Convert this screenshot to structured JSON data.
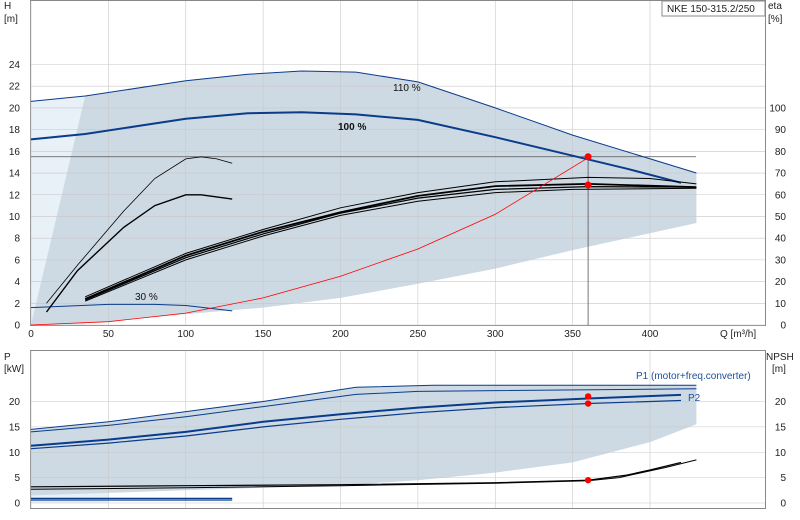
{
  "model_label": "NKE 150-315.2/250",
  "colors": {
    "band_fill": "#cdd9e3",
    "band_light": "#e8f0f8",
    "curve_blue": "#0a3c8c",
    "curve_black": "#000000",
    "system_red": "#ff0000",
    "grid": "#c8c8c8"
  },
  "chart_data": [
    {
      "type": "line",
      "name": "head_efficiency",
      "x_label": "Q [m³/h]",
      "y_left_label": [
        "H",
        "[m]"
      ],
      "y_right_label": [
        "eta",
        "[%]"
      ],
      "xlim": [
        0,
        430
      ],
      "ylim": [
        0,
        25
      ],
      "y2lim": [
        0,
        110
      ],
      "x_ticks": [
        0,
        50,
        100,
        150,
        200,
        250,
        300,
        350,
        400
      ],
      "y_ticks": [
        0,
        2,
        4,
        6,
        8,
        10,
        12,
        14,
        16,
        18,
        20,
        22,
        24
      ],
      "y2_ticks": [
        0,
        10,
        20,
        30,
        40,
        50,
        60,
        70,
        80,
        90,
        100
      ],
      "annotations": [
        "110 %",
        "100 %",
        "30 %"
      ],
      "band_upper": [
        [
          0,
          20.6
        ],
        [
          35,
          21.1
        ],
        [
          100,
          22.5
        ],
        [
          140,
          23.1
        ],
        [
          175,
          23.4
        ],
        [
          210,
          23.3
        ],
        [
          250,
          22.4
        ],
        [
          300,
          20
        ],
        [
          350,
          17.5
        ],
        [
          430,
          14
        ]
      ],
      "band_lower": [
        [
          430,
          9.4
        ],
        [
          350,
          6.9
        ],
        [
          300,
          5.2
        ],
        [
          250,
          3.8
        ],
        [
          200,
          2.5
        ],
        [
          150,
          1.6
        ],
        [
          100,
          1.0
        ],
        [
          50,
          0.3
        ],
        [
          0,
          0
        ]
      ],
      "series": [
        {
          "role": "head_110",
          "points": [
            [
              0,
              20.6
            ],
            [
              35,
              21.1
            ],
            [
              100,
              22.5
            ],
            [
              140,
              23.1
            ],
            [
              175,
              23.4
            ],
            [
              210,
              23.3
            ],
            [
              250,
              22.4
            ],
            [
              300,
              20.0
            ],
            [
              350,
              17.5
            ],
            [
              430,
              14.0
            ]
          ]
        },
        {
          "role": "head_100",
          "points": [
            [
              0,
              17.1
            ],
            [
              35,
              17.6
            ],
            [
              100,
              19.0
            ],
            [
              140,
              19.5
            ],
            [
              175,
              19.6
            ],
            [
              210,
              19.4
            ],
            [
              250,
              18.9
            ],
            [
              300,
              17.3
            ],
            [
              350,
              15.6
            ],
            [
              385,
              14.4
            ],
            [
              420,
              13.1
            ]
          ]
        },
        {
          "role": "head_min",
          "points": [
            [
              0,
              1.6
            ],
            [
              50,
              1.9
            ],
            [
              80,
              1.9
            ],
            [
              100,
              1.8
            ],
            [
              130,
              1.3
            ]
          ]
        },
        {
          "role": "head_partial_a",
          "points": [
            [
              10,
              2.0
            ],
            [
              30,
              5.5
            ],
            [
              60,
              10.5
            ],
            [
              80,
              13.5
            ],
            [
              100,
              15.3
            ],
            [
              110,
              15.5
            ],
            [
              120,
              15.3
            ],
            [
              130,
              14.9
            ]
          ]
        },
        {
          "role": "head_partial_b",
          "points": [
            [
              10,
              1.2
            ],
            [
              30,
              5.0
            ],
            [
              60,
              9.0
            ],
            [
              80,
              11.0
            ],
            [
              100,
              12.0
            ],
            [
              110,
              12.0
            ],
            [
              120,
              11.8
            ],
            [
              130,
              11.6
            ]
          ]
        },
        {
          "role": "eta_110",
          "points": [
            [
              35,
              13
            ],
            [
              100,
              33
            ],
            [
              150,
              44
            ],
            [
              200,
              54
            ],
            [
              250,
              61
            ],
            [
              300,
              66
            ],
            [
              360,
              68
            ],
            [
              400,
              67.5
            ],
            [
              430,
              65
            ]
          ]
        },
        {
          "role": "eta_100_a",
          "points": [
            [
              35,
              12
            ],
            [
              100,
              32
            ],
            [
              150,
              43
            ],
            [
              200,
              52
            ],
            [
              250,
              59.5
            ],
            [
              300,
              64
            ],
            [
              360,
              65
            ],
            [
              430,
              63.5
            ]
          ]
        },
        {
          "role": "eta_100_b",
          "points": [
            [
              35,
              11.5
            ],
            [
              100,
              31
            ],
            [
              150,
              42
            ],
            [
              200,
              51.5
            ],
            [
              250,
              58.5
            ],
            [
              300,
              62.5
            ],
            [
              360,
              63.8
            ],
            [
              430,
              63.5
            ]
          ]
        },
        {
          "role": "eta_100_c",
          "points": [
            [
              35,
              11
            ],
            [
              100,
              30
            ],
            [
              150,
              41
            ],
            [
              200,
              50.5
            ],
            [
              250,
              57
            ],
            [
              300,
              61
            ],
            [
              350,
              62.5
            ],
            [
              430,
              63
            ]
          ]
        },
        {
          "role": "system_curve",
          "points": [
            [
              0,
              0
            ],
            [
              50,
              0.3
            ],
            [
              100,
              1.1
            ],
            [
              150,
              2.5
            ],
            [
              200,
              4.5
            ],
            [
              250,
              7.0
            ],
            [
              300,
              10.2
            ],
            [
              360,
              15.4
            ]
          ]
        }
      ],
      "duty_point": {
        "x": 360,
        "y": 15.5
      },
      "duty_eta_point": {
        "x": 360,
        "y2": 64.5
      },
      "duty_h_line": 15.5
    },
    {
      "type": "line",
      "name": "power_npsh",
      "y_left_label": [
        "P",
        "[kW]"
      ],
      "y_right_label": [
        "NPSH",
        "[m]"
      ],
      "xlim": [
        0,
        430
      ],
      "ylim": [
        0,
        25
      ],
      "y2lim": [
        0,
        25
      ],
      "y_ticks": [
        0,
        5,
        10,
        15,
        20
      ],
      "y2_ticks": [
        0,
        5,
        10,
        15,
        20
      ],
      "annotations": [
        "P1 (motor+freq.converter)",
        "P2"
      ],
      "band_upper": [
        [
          0,
          14.5
        ],
        [
          50,
          16
        ],
        [
          100,
          18
        ],
        [
          150,
          20
        ],
        [
          210,
          22.8
        ],
        [
          260,
          23.2
        ],
        [
          430,
          23.2
        ]
      ],
      "band_lower": [
        [
          430,
          15.5
        ],
        [
          400,
          12
        ],
        [
          350,
          8
        ],
        [
          300,
          6
        ],
        [
          250,
          4.5
        ],
        [
          200,
          3.5
        ],
        [
          150,
          3
        ],
        [
          100,
          2.5
        ],
        [
          50,
          2
        ],
        [
          0,
          1.5
        ]
      ],
      "series": [
        {
          "role": "p1_110",
          "points": [
            [
              0,
              14.5
            ],
            [
              50,
              16
            ],
            [
              100,
              18
            ],
            [
              150,
              20
            ],
            [
              210,
              22.8
            ],
            [
              260,
              23.2
            ],
            [
              430,
              23.2
            ]
          ]
        },
        {
          "role": "p2_110",
          "points": [
            [
              0,
              14.0
            ],
            [
              50,
              15.3
            ],
            [
              100,
              17
            ],
            [
              150,
              19
            ],
            [
              210,
              21.4
            ],
            [
              250,
              22
            ],
            [
              430,
              22.5
            ]
          ]
        },
        {
          "role": "p1_100",
          "points": [
            [
              0,
              11.3
            ],
            [
              50,
              12.5
            ],
            [
              100,
              14
            ],
            [
              150,
              16
            ],
            [
              200,
              17.5
            ],
            [
              250,
              18.8
            ],
            [
              300,
              19.8
            ],
            [
              360,
              20.6
            ],
            [
              420,
              21.3
            ]
          ]
        },
        {
          "role": "p2_100",
          "points": [
            [
              0,
              10.7
            ],
            [
              50,
              11.8
            ],
            [
              100,
              13.2
            ],
            [
              150,
              15
            ],
            [
              200,
              16.5
            ],
            [
              250,
              17.8
            ],
            [
              300,
              18.8
            ],
            [
              360,
              19.6
            ],
            [
              420,
              20.2
            ]
          ]
        },
        {
          "role": "p_min_a",
          "points": [
            [
              0,
              0.9
            ],
            [
              130,
              0.9
            ]
          ]
        },
        {
          "role": "p_min_b",
          "points": [
            [
              0,
              0.6
            ],
            [
              130,
              0.6
            ]
          ]
        },
        {
          "role": "npsh_a",
          "points": [
            [
              0,
              3.2
            ],
            [
              100,
              3.4
            ],
            [
              200,
              3.6
            ],
            [
              300,
              4.0
            ],
            [
              360,
              4.5
            ],
            [
              385,
              5.5
            ],
            [
              400,
              6.5
            ],
            [
              420,
              8.0
            ]
          ]
        },
        {
          "role": "npsh_b",
          "points": [
            [
              0,
              2.7
            ],
            [
              100,
              3.0
            ],
            [
              200,
              3.4
            ],
            [
              300,
              3.9
            ],
            [
              360,
              4.4
            ],
            [
              380,
              5.0
            ],
            [
              410,
              7.0
            ],
            [
              430,
              8.5
            ]
          ]
        }
      ],
      "duty_points": [
        {
          "x": 360,
          "y": 21.0
        },
        {
          "x": 360,
          "y": 19.6
        }
      ],
      "npsh_duty_point": {
        "x": 360,
        "y": 4.5
      }
    }
  ]
}
